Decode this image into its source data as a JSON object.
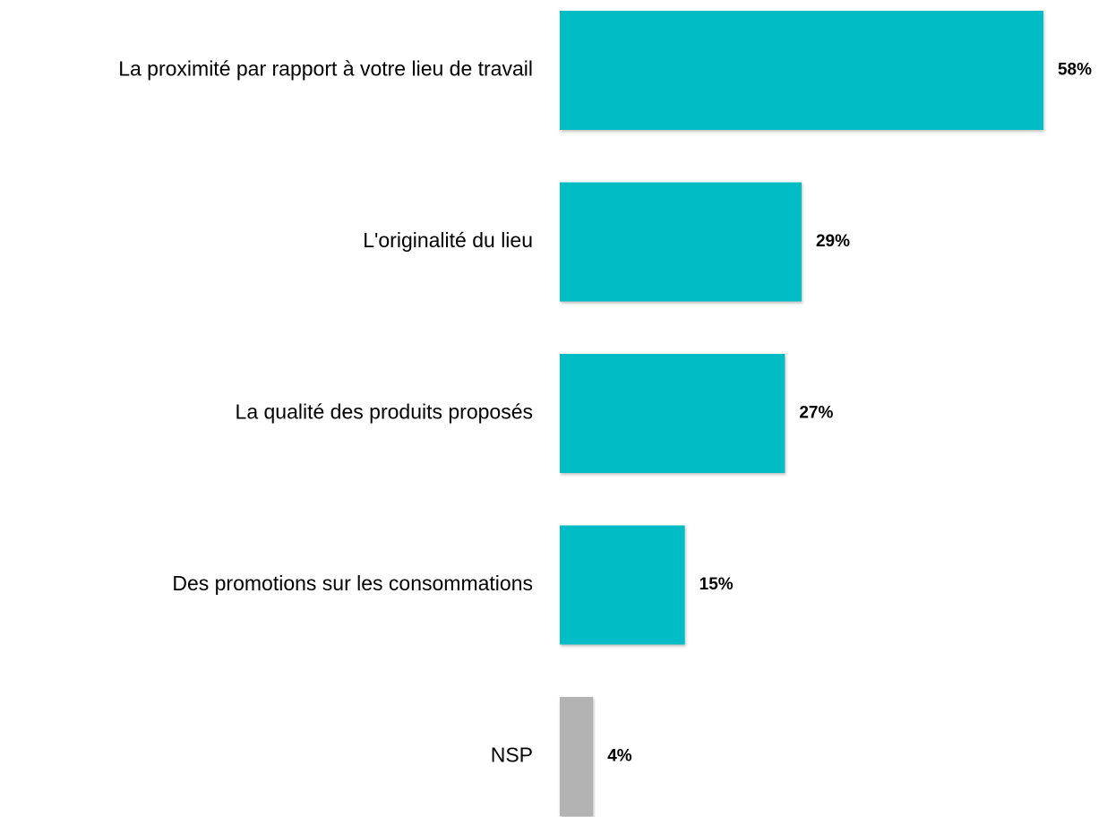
{
  "chart_data": {
    "type": "bar",
    "orientation": "horizontal",
    "categories": [
      "La proximité par rapport à votre lieu de travail",
      "L'originalité du lieu",
      "La qualité des produits proposés",
      "Des promotions sur les consommations",
      "NSP"
    ],
    "values": [
      58,
      29,
      27,
      15,
      4
    ],
    "value_labels": [
      "58%",
      "29%",
      "27%",
      "15%",
      "4%"
    ],
    "colors": [
      "#00bcc4",
      "#00bcc4",
      "#00bcc4",
      "#00bcc4",
      "#b3b3b3"
    ]
  }
}
